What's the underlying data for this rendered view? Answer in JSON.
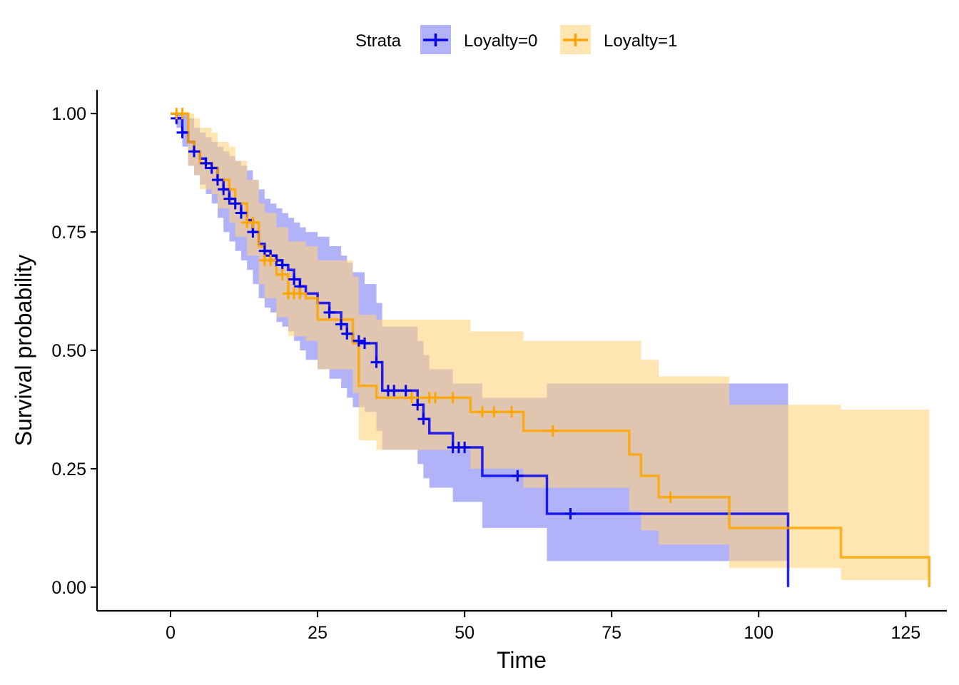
{
  "colors": {
    "loyalty0": "#0000ee",
    "loyalty1": "#ffa500",
    "band0": "#7f7ff5",
    "band1": "#ffd37f",
    "axis": "#000000",
    "background": "#ffffff"
  },
  "legend": {
    "title": "Strata",
    "items": [
      "Loyalty=0",
      "Loyalty=1"
    ]
  },
  "chart_data": {
    "type": "line",
    "subtype": "kaplan-meier survival curve",
    "xlabel": "Time",
    "ylabel": "Survival probability",
    "xlim": [
      -12.5,
      132
    ],
    "ylim": [
      -0.05,
      1.05
    ],
    "x_ticks": [
      0,
      25,
      50,
      75,
      100,
      125
    ],
    "x_tick_labels": [
      "0",
      "25",
      "50",
      "75",
      "100",
      "125"
    ],
    "y_ticks": [
      0,
      0.25,
      0.5,
      0.75,
      1.0
    ],
    "y_tick_labels": [
      "0.00",
      "0.25",
      "0.50",
      "0.75",
      "1.00"
    ],
    "grid": false,
    "legend_position": "top",
    "series": [
      {
        "name": "Loyalty=0",
        "step_times": [
          0,
          1,
          2,
          3,
          4,
          5,
          6,
          7,
          8,
          9,
          10,
          11,
          12,
          13,
          14,
          15,
          16,
          17,
          18,
          19,
          20,
          21,
          22,
          23,
          25,
          27,
          29,
          30,
          31,
          33,
          35,
          36,
          42,
          43,
          44,
          48,
          53,
          64,
          105
        ],
        "survival": [
          1.0,
          0.99,
          0.96,
          0.94,
          0.92,
          0.905,
          0.895,
          0.885,
          0.86,
          0.84,
          0.82,
          0.81,
          0.79,
          0.775,
          0.75,
          0.725,
          0.71,
          0.7,
          0.69,
          0.68,
          0.67,
          0.65,
          0.635,
          0.62,
          0.6,
          0.58,
          0.555,
          0.535,
          0.52,
          0.515,
          0.475,
          0.415,
          0.385,
          0.355,
          0.325,
          0.295,
          0.235,
          0.155,
          0.0
        ],
        "lower": [
          1.0,
          0.97,
          0.93,
          0.89,
          0.87,
          0.85,
          0.83,
          0.81,
          0.78,
          0.75,
          0.73,
          0.71,
          0.69,
          0.67,
          0.64,
          0.61,
          0.59,
          0.58,
          0.56,
          0.55,
          0.54,
          0.52,
          0.5,
          0.48,
          0.46,
          0.44,
          0.42,
          0.4,
          0.38,
          0.37,
          0.33,
          0.29,
          0.26,
          0.23,
          0.21,
          0.18,
          0.125,
          0.055,
          0.0
        ],
        "upper": [
          1.0,
          1.0,
          1.0,
          0.99,
          0.97,
          0.96,
          0.95,
          0.94,
          0.93,
          0.92,
          0.91,
          0.9,
          0.89,
          0.88,
          0.86,
          0.84,
          0.82,
          0.81,
          0.8,
          0.79,
          0.78,
          0.77,
          0.76,
          0.75,
          0.74,
          0.72,
          0.7,
          0.685,
          0.665,
          0.64,
          0.6,
          0.55,
          0.52,
          0.49,
          0.46,
          0.43,
          0.4,
          0.43,
          0.43
        ],
        "censor_times": [
          1,
          2,
          4,
          6,
          7,
          8,
          9,
          10,
          11,
          12,
          14,
          16,
          17,
          18,
          19,
          21,
          22,
          27,
          29,
          30,
          32,
          33,
          35,
          37,
          38,
          40,
          42,
          43,
          48,
          49,
          50,
          59,
          68
        ]
      },
      {
        "name": "Loyalty=1",
        "step_times": [
          0,
          3,
          4,
          5,
          7,
          8,
          10,
          11,
          13,
          15,
          16,
          18,
          20,
          23,
          25,
          31,
          32,
          35,
          51,
          60,
          78,
          80,
          83,
          95,
          114,
          129
        ],
        "survival": [
          1.0,
          0.94,
          0.92,
          0.895,
          0.885,
          0.86,
          0.84,
          0.81,
          0.77,
          0.72,
          0.69,
          0.66,
          0.62,
          0.61,
          0.565,
          0.515,
          0.425,
          0.4,
          0.37,
          0.33,
          0.28,
          0.235,
          0.19,
          0.125,
          0.063,
          0.0
        ],
        "lower": [
          1.0,
          0.89,
          0.87,
          0.84,
          0.83,
          0.8,
          0.77,
          0.74,
          0.7,
          0.64,
          0.61,
          0.57,
          0.53,
          0.52,
          0.46,
          0.41,
          0.31,
          0.29,
          0.25,
          0.21,
          0.16,
          0.12,
          0.09,
          0.04,
          0.015,
          0.015
        ],
        "upper": [
          1.0,
          1.0,
          0.99,
          0.97,
          0.96,
          0.94,
          0.93,
          0.9,
          0.86,
          0.81,
          0.79,
          0.76,
          0.73,
          0.72,
          0.69,
          0.655,
          0.575,
          0.565,
          0.54,
          0.52,
          0.52,
          0.48,
          0.445,
          0.385,
          0.375,
          0.375
        ],
        "censor_times": [
          1,
          2,
          13,
          14,
          16,
          17,
          19,
          20,
          21,
          22,
          41,
          44,
          45,
          48,
          53,
          55,
          58,
          65,
          85
        ]
      }
    ]
  }
}
